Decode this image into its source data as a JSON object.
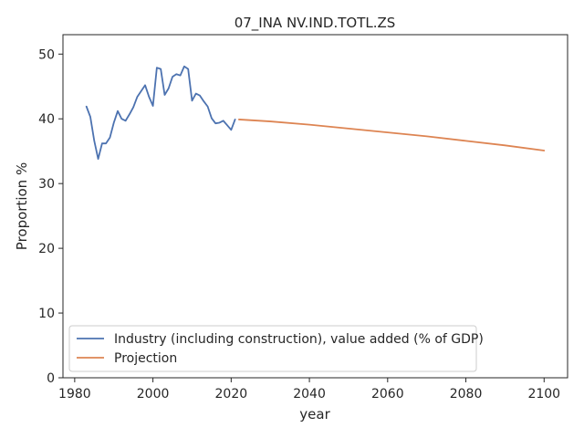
{
  "chart_data": {
    "type": "line",
    "title": "07_INA NV.IND.TOTL.ZS",
    "xlabel": "year",
    "ylabel": "Proportion %",
    "xlim": [
      1977,
      2106
    ],
    "ylim": [
      0,
      53
    ],
    "xticks": [
      1980,
      2000,
      2020,
      2040,
      2060,
      2080,
      2100
    ],
    "yticks": [
      0,
      10,
      20,
      30,
      40,
      50
    ],
    "grid": false,
    "legend_position": "lower-left",
    "series": [
      {
        "name": "Industry (including construction), value added (% of GDP)",
        "color": "#4c72b0",
        "x": [
          1983,
          1984,
          1985,
          1986,
          1987,
          1988,
          1989,
          1990,
          1991,
          1992,
          1993,
          1994,
          1995,
          1996,
          1997,
          1998,
          1999,
          2000,
          2001,
          2002,
          2003,
          2004,
          2005,
          2006,
          2007,
          2008,
          2009,
          2010,
          2011,
          2012,
          2013,
          2014,
          2015,
          2016,
          2017,
          2018,
          2019,
          2020,
          2021
        ],
        "y": [
          41.9,
          40.3,
          36.6,
          33.8,
          36.2,
          36.2,
          37.1,
          39.4,
          41.2,
          40.0,
          39.7,
          40.7,
          41.8,
          43.4,
          44.3,
          45.2,
          43.4,
          42.0,
          47.9,
          47.7,
          43.7,
          44.7,
          46.5,
          46.9,
          46.7,
          48.1,
          47.7,
          42.8,
          43.9,
          43.6,
          42.7,
          41.9,
          40.1,
          39.3,
          39.4,
          39.7,
          39.0,
          38.3,
          39.9
        ]
      },
      {
        "name": "Projection",
        "color": "#dd8452",
        "x": [
          2022,
          2030,
          2040,
          2050,
          2060,
          2070,
          2080,
          2090,
          2100
        ],
        "y": [
          39.9,
          39.6,
          39.1,
          38.5,
          37.9,
          37.3,
          36.6,
          35.9,
          35.1
        ]
      }
    ]
  }
}
